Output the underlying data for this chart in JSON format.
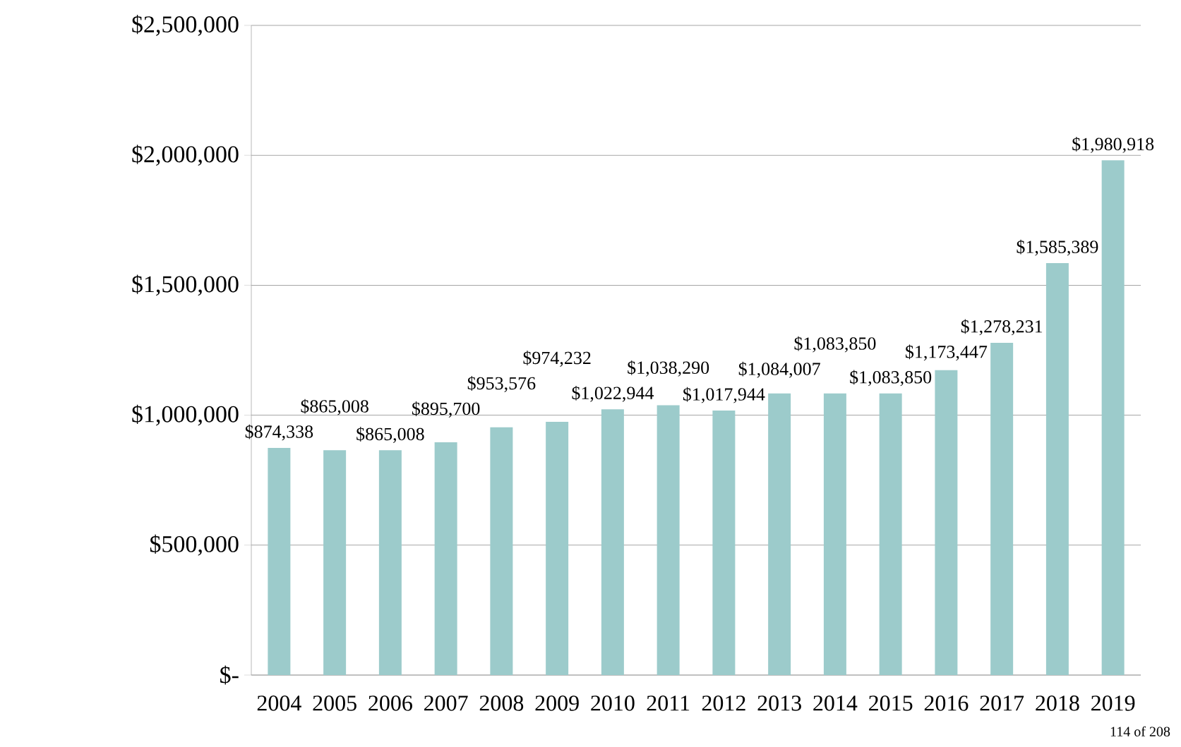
{
  "chart_data": {
    "type": "bar",
    "categories": [
      "2004",
      "2005",
      "2006",
      "2007",
      "2008",
      "2009",
      "2010",
      "2011",
      "2012",
      "2013",
      "2014",
      "2015",
      "2016",
      "2017",
      "2018",
      "2019"
    ],
    "values": [
      874338,
      865008,
      865008,
      895700,
      953576,
      974232,
      1022944,
      1038290,
      1017944,
      1084007,
      1083850,
      1083850,
      1173447,
      1278231,
      1585389,
      1980918
    ],
    "value_labels": [
      "$874,338",
      "$865,008",
      "$865,008",
      "$895,700",
      "$953,576",
      "$974,232",
      "$1,022,944",
      "$1,038,290",
      "$1,017,944",
      "$1,084,007",
      "$1,083,850",
      "$1,083,850",
      "$1,173,447",
      "$1,278,231",
      "$1,585,389",
      "$1,980,918"
    ],
    "color": "#9ccbcb",
    "ylim": [
      0,
      2500000
    ],
    "yticks": [
      {
        "value": 0,
        "label": "$-"
      },
      {
        "value": 500000,
        "label": "$500,000"
      },
      {
        "value": 1000000,
        "label": "$1,000,000"
      },
      {
        "value": 1500000,
        "label": "$1,500,000"
      },
      {
        "value": 2000000,
        "label": "$2,000,000"
      },
      {
        "value": 2500000,
        "label": "$2,500,000"
      }
    ],
    "grid": "y",
    "annotations": [
      "114 of 208"
    ]
  }
}
